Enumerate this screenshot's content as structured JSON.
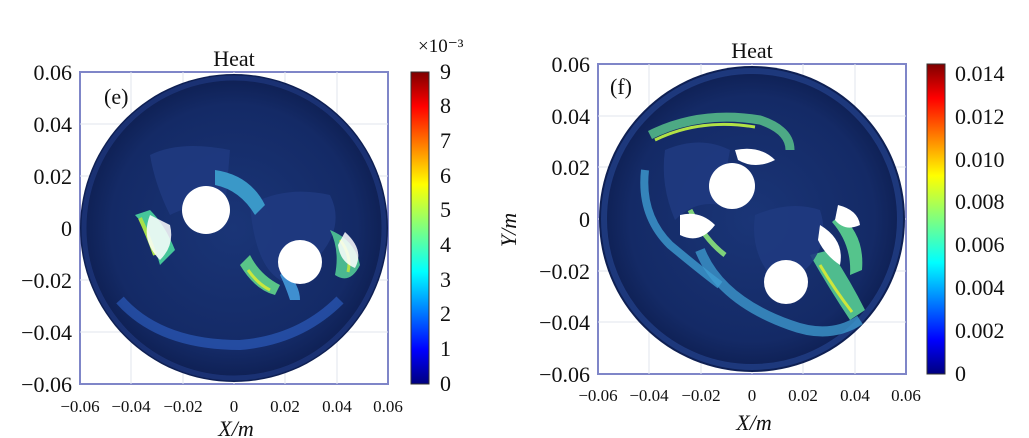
{
  "chart_data": [
    {
      "type": "heatmap",
      "panel_label": "(e)",
      "title": "Heat",
      "xlabel": "X/m",
      "ylabel": "",
      "xlim": [
        -0.06,
        0.06
      ],
      "ylim": [
        -0.06,
        0.06
      ],
      "x_ticks": [
        "−0.06",
        "−0.04",
        "−0.02",
        "0",
        "0.02",
        "0.04",
        "0.06"
      ],
      "y_ticks": [
        "0.06",
        "0.04",
        "0.02",
        "0",
        "−0.02",
        "−0.04",
        "−0.06"
      ],
      "colorbar": {
        "multiplier": "×10⁻³",
        "ticks": [
          "9",
          "8",
          "7",
          "6",
          "5",
          "4",
          "3",
          "2",
          "1",
          "0"
        ],
        "range": [
          0,
          9
        ]
      },
      "grid": true
    },
    {
      "type": "heatmap",
      "panel_label": "(f)",
      "title": "Heat",
      "xlabel": "X/m",
      "ylabel": "Y/m",
      "xlim": [
        -0.06,
        0.06
      ],
      "ylim": [
        -0.06,
        0.06
      ],
      "x_ticks": [
        "−0.06",
        "−0.04",
        "−0.02",
        "0",
        "0.02",
        "0.04",
        "0.06"
      ],
      "y_ticks": [
        "0.06",
        "0.04",
        "0.02",
        "0",
        "−0.02",
        "−0.04",
        "−0.06"
      ],
      "colorbar": {
        "multiplier": "",
        "ticks": [
          "0.014",
          "0.012",
          "0.010",
          "0.008",
          "0.006",
          "0.004",
          "0.002",
          "0"
        ],
        "range": [
          0,
          0.014
        ]
      },
      "grid": true
    }
  ],
  "colormap": [
    "#00008f",
    "#0040ff",
    "#00c0ff",
    "#40ffbf",
    "#bfff40",
    "#ffc000",
    "#ff4000",
    "#800000"
  ]
}
